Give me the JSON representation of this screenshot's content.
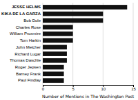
{
  "chart_data": {
    "type": "bar",
    "orientation": "horizontal",
    "categories": [
      "Paul Findlay",
      "Barney Frank",
      "Roger Jepsen",
      "Thomas Daschle",
      "Richard Lugar",
      "John Melcher",
      "Tom Harkin",
      "William Proxmire",
      "Charles Rose",
      "Bob Dole",
      "KIKA DE LA GARZA",
      "JESSE HELMS"
    ],
    "values": [
      3.5,
      3.5,
      3.5,
      4,
      4,
      4,
      5,
      5,
      5,
      10,
      10,
      14
    ],
    "color": "#111111",
    "xlabel": "Number of Mentions in The Washington Post",
    "xlim": [
      0,
      15
    ],
    "xticks": [
      0,
      5,
      10,
      15
    ],
    "grid": true
  }
}
